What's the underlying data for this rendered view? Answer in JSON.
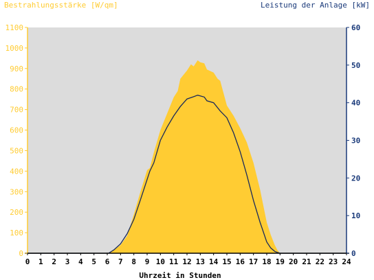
{
  "chart_data": {
    "type": "area",
    "left_axis_title": "Bestrahlungsstärke [W/qm]",
    "right_axis_title": "Leistung der Anlage [kW]",
    "xlabel": "Uhrzeit in Stunden",
    "xlim": [
      0,
      24
    ],
    "ylim_left": [
      0,
      1100
    ],
    "ylim_right": [
      0,
      60
    ],
    "x_ticks": [
      "0",
      "1",
      "2",
      "3",
      "4",
      "5",
      "6",
      "7",
      "8",
      "9",
      "10",
      "11",
      "12",
      "13",
      "14",
      "15",
      "16",
      "17",
      "18",
      "19",
      "20",
      "21",
      "22",
      "23",
      "24"
    ],
    "y_ticks_left": [
      "0",
      "100",
      "200",
      "300",
      "400",
      "500",
      "600",
      "700",
      "800",
      "900",
      "1000",
      "1100"
    ],
    "y_ticks_right": [
      "0",
      "10",
      "20",
      "30",
      "40",
      "50",
      "60"
    ],
    "grid": false,
    "series": [
      {
        "name": "Bestrahlungsstärke",
        "axis": "left",
        "style": "area",
        "x": [
          0,
          6.1,
          6.5,
          7.0,
          7.5,
          8.0,
          8.5,
          9.0,
          9.2,
          9.5,
          10.0,
          10.5,
          11.0,
          11.3,
          11.5,
          12.0,
          12.3,
          12.5,
          12.8,
          13.0,
          13.3,
          13.5,
          14.0,
          14.3,
          14.5,
          15.0,
          15.5,
          16.0,
          16.5,
          17.0,
          17.5,
          18.0,
          18.3,
          18.6,
          18.8,
          19.0,
          24
        ],
        "y": [
          0,
          0,
          15,
          40,
          85,
          190,
          300,
          405,
          415,
          490,
          600,
          680,
          760,
          790,
          850,
          890,
          920,
          910,
          940,
          930,
          925,
          895,
          880,
          850,
          840,
          720,
          670,
          610,
          540,
          440,
          310,
          150,
          90,
          40,
          15,
          0,
          0
        ]
      },
      {
        "name": "Leistung der Anlage",
        "axis": "right",
        "style": "line",
        "x": [
          0,
          6.1,
          6.5,
          7.0,
          7.5,
          8.0,
          8.5,
          9.0,
          9.2,
          9.5,
          10.0,
          10.5,
          11.0,
          11.5,
          12.0,
          12.5,
          12.8,
          13.0,
          13.3,
          13.5,
          14.0,
          14.5,
          15.0,
          15.5,
          16.0,
          16.5,
          17.0,
          17.5,
          18.0,
          18.3,
          18.6,
          18.8,
          19.0,
          24
        ],
        "y": [
          0,
          0,
          0.9,
          2.5,
          5.2,
          9.0,
          14.2,
          19.6,
          21.8,
          24.0,
          30.0,
          33.5,
          36.5,
          39.0,
          41.0,
          41.6,
          42.0,
          41.8,
          41.5,
          40.5,
          40.0,
          37.8,
          36.0,
          32.0,
          27.0,
          20.8,
          14.0,
          8.2,
          3.0,
          1.4,
          0.5,
          0.2,
          0,
          0
        ]
      }
    ],
    "colors": {
      "plot_bg": "#dcdcdc",
      "area": "#ffcc33",
      "line": "#1a2a5a",
      "left_axis": "#ffcc33",
      "right_axis": "#1a3a7a",
      "x_axis_text": "#000000"
    }
  }
}
